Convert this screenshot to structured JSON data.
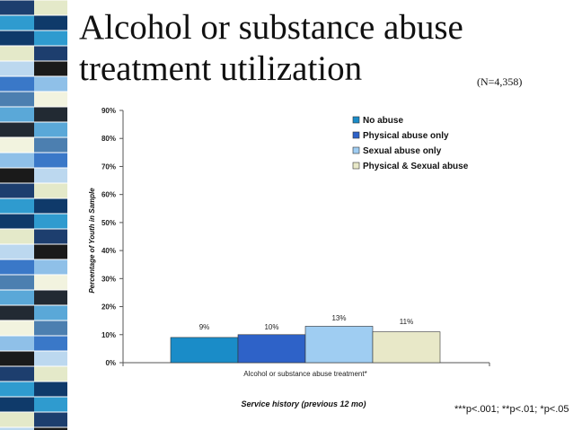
{
  "slide": {
    "title": "Alcohol or substance abuse treatment utilization",
    "sample_note": "(N=4,358)",
    "footnote": "***p<.001; **p<.01; *p<.05",
    "stripe_colors": [
      "#1d3e6e",
      "#3a78c8",
      "#8fc0e8",
      "#e4e9c9",
      "#222a33",
      "#2f9bcf",
      "#4c7fb0",
      "#1a1a1a",
      "#bcd8ef",
      "#f2f3df",
      "#0f3a6a",
      "#5aa8d8"
    ]
  },
  "chart_data": {
    "type": "bar",
    "categories": [
      "Alcohol or substance abuse treatment*"
    ],
    "series": [
      {
        "name": "No abuse",
        "values": [
          9
        ],
        "color": "#1a8cc8",
        "data_label": "9%"
      },
      {
        "name": "Physical abuse only",
        "values": [
          10
        ],
        "color": "#2e62c8",
        "data_label": "10%"
      },
      {
        "name": "Sexual abuse only",
        "values": [
          13
        ],
        "color": "#9fcdf2",
        "data_label": "13%"
      },
      {
        "name": "Physical & Sexual abuse",
        "values": [
          11
        ],
        "color": "#e8e8c8",
        "data_label": "11%"
      }
    ],
    "ylim": [
      0,
      90
    ],
    "yticks": [
      "0%",
      "10%",
      "20%",
      "30%",
      "40%",
      "50%",
      "60%",
      "70%",
      "80%",
      "90%"
    ],
    "ylabel": "Percentage of Youth in Sample",
    "xlabel": "Service history (previous 12 mo)",
    "legend_position": "top-right",
    "grid": false
  }
}
